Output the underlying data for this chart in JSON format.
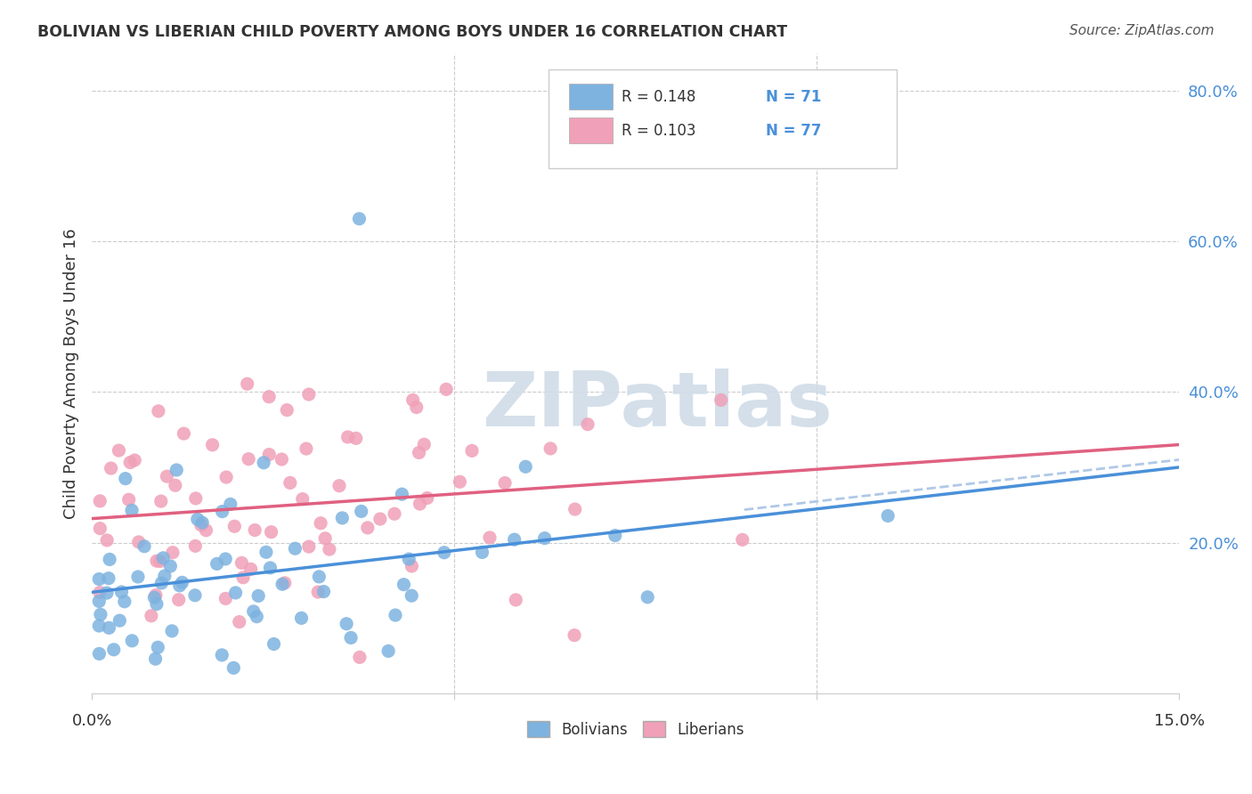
{
  "title": "BOLIVIAN VS LIBERIAN CHILD POVERTY AMONG BOYS UNDER 16 CORRELATION CHART",
  "source": "Source: ZipAtlas.com",
  "ylabel": "Child Poverty Among Boys Under 16",
  "xlim": [
    0.0,
    0.15
  ],
  "ylim": [
    0.0,
    0.85
  ],
  "background_color": "#ffffff",
  "grid_color": "#cccccc",
  "watermark_text": "ZIPatlas",
  "watermark_color": "#d0dce8",
  "legend_R_blue": "0.148",
  "legend_N_blue": "71",
  "legend_R_pink": "0.103",
  "legend_N_pink": "77",
  "bolivia_color": "#7eb3e0",
  "liberia_color": "#f0a0b8",
  "trendline_blue_color": "#4a90d9",
  "trendline_pink_color": "#e06080",
  "confidence_color": "#b0c8e8"
}
